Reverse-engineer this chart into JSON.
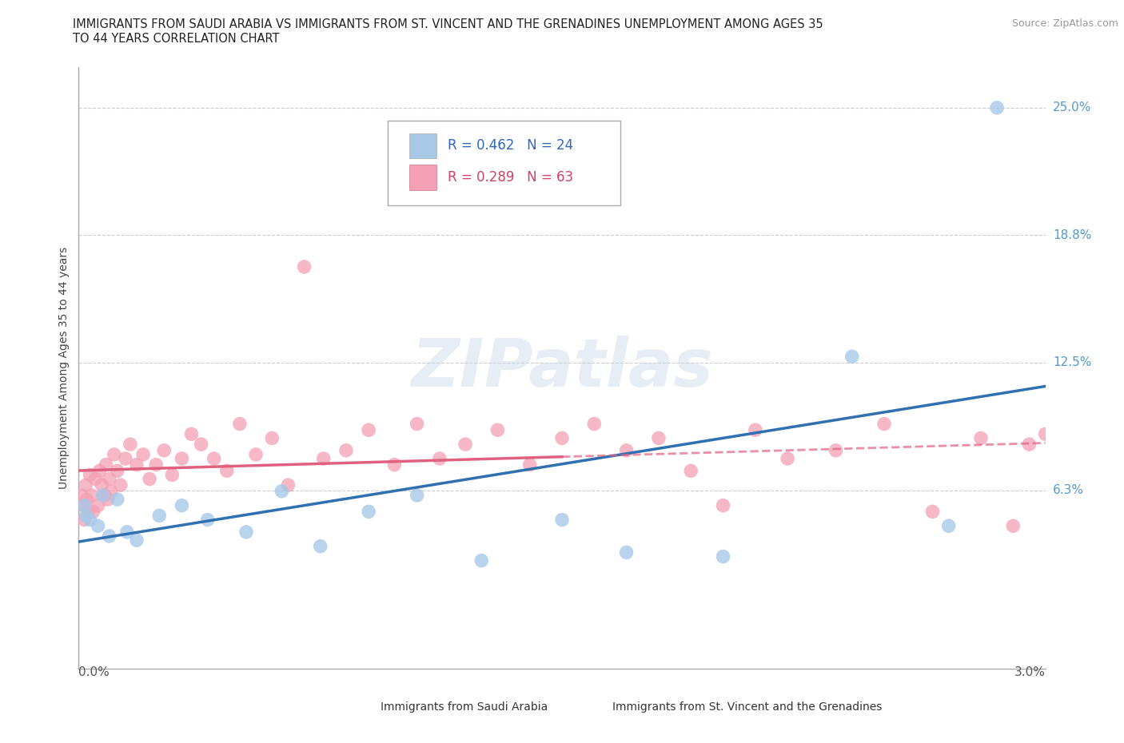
{
  "title_line1": "IMMIGRANTS FROM SAUDI ARABIA VS IMMIGRANTS FROM ST. VINCENT AND THE GRENADINES UNEMPLOYMENT AMONG AGES 35",
  "title_line2": "TO 44 YEARS CORRELATION CHART",
  "source": "Source: ZipAtlas.com",
  "ylabel": "Unemployment Among Ages 35 to 44 years",
  "ytick_vals": [
    0.0625,
    0.125,
    0.1875,
    0.25
  ],
  "ytick_labels": [
    "6.3%",
    "12.5%",
    "18.8%",
    "25.0%"
  ],
  "xlim": [
    0.0,
    0.03
  ],
  "ylim": [
    -0.025,
    0.27
  ],
  "watermark": "ZIPatlas",
  "legend1_R": "0.462",
  "legend1_N": "24",
  "legend2_R": "0.289",
  "legend2_N": "63",
  "series1_name": "Immigrants from Saudi Arabia",
  "series2_name": "Immigrants from St. Vincent and the Grenadines",
  "series1_color": "#a8c8e8",
  "series2_color": "#f4a0b5",
  "series1_line_color": "#3070b0",
  "series2_line_color": "#e06080",
  "gridline_color": "#cccccc",
  "background_color": "#ffffff",
  "series1_x": [
    0.00018,
    0.00022,
    0.00035,
    0.0006,
    0.00075,
    0.00095,
    0.0012,
    0.0015,
    0.0018,
    0.0025,
    0.0032,
    0.004,
    0.0052,
    0.0063,
    0.0075,
    0.009,
    0.0105,
    0.0125,
    0.015,
    0.017,
    0.02,
    0.024,
    0.027,
    0.0285
  ],
  "series1_y": [
    0.055,
    0.05,
    0.048,
    0.045,
    0.06,
    0.04,
    0.058,
    0.042,
    0.038,
    0.05,
    0.055,
    0.048,
    0.042,
    0.062,
    0.035,
    0.052,
    0.06,
    0.028,
    0.048,
    0.032,
    0.03,
    0.128,
    0.045,
    0.25
  ],
  "series2_x": [
    0.0001,
    0.00015,
    0.00018,
    0.00022,
    0.00025,
    0.0003,
    0.00035,
    0.0004,
    0.00045,
    0.00052,
    0.0006,
    0.00065,
    0.00072,
    0.0008,
    0.00085,
    0.0009,
    0.00095,
    0.001,
    0.0011,
    0.0012,
    0.0013,
    0.00145,
    0.0016,
    0.0018,
    0.002,
    0.0022,
    0.0024,
    0.00265,
    0.0029,
    0.0032,
    0.0035,
    0.0038,
    0.0042,
    0.0046,
    0.005,
    0.0055,
    0.006,
    0.0065,
    0.007,
    0.0076,
    0.0083,
    0.009,
    0.0098,
    0.0105,
    0.0112,
    0.012,
    0.013,
    0.014,
    0.015,
    0.016,
    0.017,
    0.018,
    0.019,
    0.02,
    0.021,
    0.022,
    0.0235,
    0.025,
    0.0265,
    0.028,
    0.029,
    0.0295,
    0.03
  ],
  "series2_y": [
    0.06,
    0.055,
    0.048,
    0.065,
    0.058,
    0.052,
    0.07,
    0.06,
    0.052,
    0.068,
    0.055,
    0.072,
    0.065,
    0.06,
    0.075,
    0.058,
    0.068,
    0.062,
    0.08,
    0.072,
    0.065,
    0.078,
    0.085,
    0.075,
    0.08,
    0.068,
    0.075,
    0.082,
    0.07,
    0.078,
    0.09,
    0.085,
    0.078,
    0.072,
    0.095,
    0.08,
    0.088,
    0.065,
    0.172,
    0.078,
    0.082,
    0.092,
    0.075,
    0.095,
    0.078,
    0.085,
    0.092,
    0.075,
    0.088,
    0.095,
    0.082,
    0.088,
    0.072,
    0.055,
    0.092,
    0.078,
    0.082,
    0.095,
    0.052,
    0.088,
    0.045,
    0.085,
    0.09
  ]
}
